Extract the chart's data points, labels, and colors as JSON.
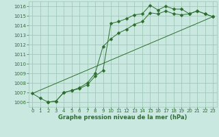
{
  "title": "Graphe pression niveau de la mer (hPa)",
  "bg_color": "#c8e8e0",
  "grid_color": "#a0c8b8",
  "line_color": "#2d6e2d",
  "xlim": [
    -0.5,
    23.5
  ],
  "ylim": [
    1005.5,
    1016.5
  ],
  "yticks": [
    1006,
    1007,
    1008,
    1009,
    1010,
    1011,
    1012,
    1013,
    1014,
    1015,
    1016
  ],
  "xticks": [
    0,
    1,
    2,
    3,
    4,
    5,
    6,
    7,
    8,
    9,
    10,
    11,
    12,
    13,
    14,
    15,
    16,
    17,
    18,
    19,
    20,
    21,
    22,
    23
  ],
  "line1_x": [
    0,
    1,
    2,
    3,
    4,
    5,
    6,
    7,
    8,
    9,
    10,
    11,
    12,
    13,
    14,
    15,
    16,
    17,
    18,
    19,
    20,
    21,
    22,
    23
  ],
  "line1_y": [
    1006.9,
    1006.4,
    1006.0,
    1006.1,
    1007.0,
    1007.2,
    1007.5,
    1008.0,
    1009.0,
    1011.8,
    1012.6,
    1013.2,
    1013.6,
    1014.1,
    1014.4,
    1015.3,
    1015.2,
    1015.5,
    1015.2,
    1015.1,
    1015.2,
    1015.5,
    1015.2,
    1014.9
  ],
  "line2_x": [
    2,
    3,
    4,
    5,
    6,
    7,
    8,
    9,
    10,
    11,
    12,
    13,
    14,
    15,
    16,
    17,
    18,
    19,
    20,
    21,
    22,
    23
  ],
  "line2_y": [
    1006.0,
    1006.1,
    1007.0,
    1007.2,
    1007.4,
    1007.8,
    1008.7,
    1009.3,
    1014.2,
    1014.4,
    1014.7,
    1015.1,
    1015.2,
    1016.1,
    1015.6,
    1016.0,
    1015.7,
    1015.7,
    1015.2,
    1015.5,
    1015.2,
    1014.9
  ],
  "line3_x": [
    0,
    23
  ],
  "line3_y": [
    1006.9,
    1014.9
  ],
  "tick_fontsize": 5.0,
  "xlabel_fontsize": 6.0,
  "marker_size": 2.5
}
